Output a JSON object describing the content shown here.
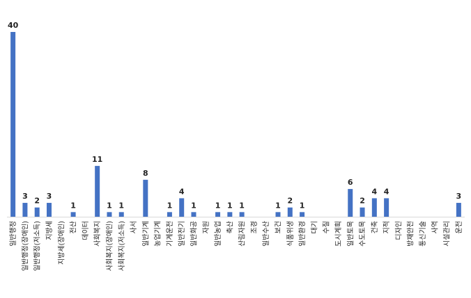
{
  "chart_data": {
    "type": "bar",
    "title": "",
    "xlabel": "",
    "ylabel": "",
    "ylim": [
      0,
      40
    ],
    "grid": false,
    "legend": "none",
    "bar_color": "#4472C4",
    "categories": [
      "일반행정",
      "일반행정(장애인)",
      "일반행정(저소득)",
      "지방세",
      "지방세(장애인)",
      "전산",
      "데이터",
      "사회복지",
      "사회복지(장애인)",
      "사회복지(저소득)",
      "사서",
      "일반기계",
      "농업기계",
      "기계운전",
      "일반전기",
      "일반화공",
      "자원",
      "일반농업",
      "축산",
      "산림자원",
      "조경",
      "일반수산",
      "보건",
      "식품위생",
      "일반환경",
      "대기",
      "수질",
      "도시계획",
      "일반토목",
      "수도토목",
      "건축",
      "지적",
      "디자인",
      "방재안전",
      "통신기술",
      "사역",
      "시설관리",
      "운전"
    ],
    "values": [
      40,
      3,
      2,
      3,
      0,
      1,
      0,
      11,
      1,
      1,
      0,
      8,
      0,
      1,
      4,
      1,
      0,
      1,
      1,
      1,
      0,
      0,
      1,
      2,
      1,
      0,
      0,
      0,
      6,
      2,
      4,
      4,
      0,
      0,
      0,
      0,
      0,
      3
    ],
    "data_labels": [
      "40",
      "3",
      "2",
      "3",
      "",
      "1",
      "",
      "11",
      "1",
      "1",
      "",
      "8",
      "",
      "1",
      "4",
      "1",
      "",
      "1",
      "1",
      "1",
      "",
      "",
      "1",
      "2",
      "1",
      "",
      "",
      "",
      "6",
      "2",
      "4",
      "4",
      "",
      "",
      "",
      "",
      "",
      "3"
    ]
  }
}
